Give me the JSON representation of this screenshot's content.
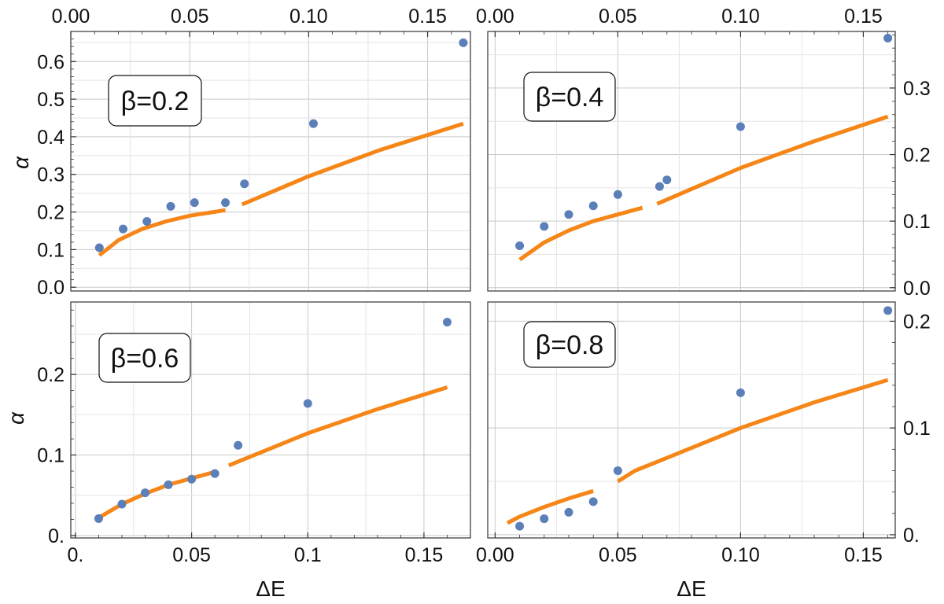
{
  "colors": {
    "points": "#5b7fb8",
    "curve": "#f58617",
    "grid": "#c9c9c9",
    "frame": "#333333"
  },
  "chart_data": [
    {
      "type": "scatter",
      "panel": "top-left",
      "label": "β=0.2",
      "xlabel": "",
      "ylabel": "α",
      "xlim": [
        0.0,
        0.168
      ],
      "ylim": [
        -0.01,
        0.68
      ],
      "x_ticks": [
        "0.00",
        "0.05",
        "0.10",
        "0.15"
      ],
      "x_tick_values": [
        0.0,
        0.05,
        0.1,
        0.15
      ],
      "x_axis_side": "top",
      "y_ticks": [
        "0.0",
        "0.1",
        "0.2",
        "0.3",
        "0.4",
        "0.5",
        "0.6"
      ],
      "y_tick_values": [
        0.0,
        0.1,
        0.2,
        0.3,
        0.4,
        0.5,
        0.6
      ],
      "y_axis_side": "left",
      "grid": true,
      "legend_position": "top-left",
      "series": [
        {
          "name": "data",
          "kind": "points",
          "x": [
            0.012,
            0.022,
            0.032,
            0.042,
            0.052,
            0.065,
            0.073,
            0.102,
            0.165
          ],
          "y": [
            0.105,
            0.155,
            0.175,
            0.215,
            0.225,
            0.225,
            0.275,
            0.435,
            0.65
          ]
        },
        {
          "name": "fit-low",
          "kind": "line",
          "x": [
            0.012,
            0.02,
            0.03,
            0.04,
            0.05,
            0.06,
            0.065
          ],
          "y": [
            0.085,
            0.125,
            0.155,
            0.175,
            0.19,
            0.2,
            0.205
          ]
        },
        {
          "name": "fit-high",
          "kind": "line",
          "x": [
            0.072,
            0.1,
            0.13,
            0.165
          ],
          "y": [
            0.22,
            0.295,
            0.365,
            0.435
          ]
        }
      ]
    },
    {
      "type": "scatter",
      "panel": "top-right",
      "label": "β=0.4",
      "xlabel": "",
      "ylabel": "",
      "xlim": [
        -0.003,
        0.163
      ],
      "ylim": [
        -0.005,
        0.385
      ],
      "x_ticks": [
        "0.00",
        "0.05",
        "0.10",
        "0.15"
      ],
      "x_tick_values": [
        0.0,
        0.05,
        0.1,
        0.15
      ],
      "x_axis_side": "top",
      "y_ticks": [
        "0.0",
        "0.1",
        "0.2",
        "0.3"
      ],
      "y_tick_values": [
        0.0,
        0.1,
        0.2,
        0.3
      ],
      "y_axis_side": "right",
      "grid": true,
      "legend_position": "top-left",
      "series": [
        {
          "name": "data",
          "kind": "points",
          "x": [
            0.01,
            0.02,
            0.03,
            0.04,
            0.05,
            0.067,
            0.07,
            0.1,
            0.16
          ],
          "y": [
            0.063,
            0.092,
            0.11,
            0.123,
            0.14,
            0.152,
            0.162,
            0.242,
            0.375
          ]
        },
        {
          "name": "fit-low",
          "kind": "line",
          "x": [
            0.01,
            0.02,
            0.03,
            0.04,
            0.05,
            0.06
          ],
          "y": [
            0.042,
            0.068,
            0.086,
            0.1,
            0.11,
            0.12
          ]
        },
        {
          "name": "fit-high",
          "kind": "line",
          "x": [
            0.066,
            0.1,
            0.13,
            0.16
          ],
          "y": [
            0.126,
            0.18,
            0.22,
            0.257
          ]
        }
      ]
    },
    {
      "type": "scatter",
      "panel": "bottom-left",
      "label": "β=0.6",
      "xlabel": "ΔE",
      "ylabel": "α",
      "xlim": [
        -0.002,
        0.17
      ],
      "ylim": [
        -0.003,
        0.29
      ],
      "x_ticks": [
        "0.",
        "0.05",
        "0.1",
        "0.15"
      ],
      "x_tick_values": [
        0.0,
        0.05,
        0.1,
        0.15
      ],
      "x_axis_side": "bottom",
      "y_ticks": [
        "0.",
        "0.1",
        "0.2"
      ],
      "y_tick_values": [
        0.0,
        0.1,
        0.2
      ],
      "y_axis_side": "left",
      "grid": true,
      "legend_position": "top-left",
      "series": [
        {
          "name": "data",
          "kind": "points",
          "x": [
            0.01,
            0.02,
            0.03,
            0.04,
            0.05,
            0.06,
            0.07,
            0.1,
            0.16
          ],
          "y": [
            0.021,
            0.039,
            0.053,
            0.063,
            0.07,
            0.077,
            0.112,
            0.164,
            0.265
          ]
        },
        {
          "name": "fit-low",
          "kind": "line",
          "x": [
            0.01,
            0.02,
            0.03,
            0.04,
            0.05,
            0.06
          ],
          "y": [
            0.022,
            0.039,
            0.052,
            0.063,
            0.071,
            0.079
          ]
        },
        {
          "name": "fit-high",
          "kind": "line",
          "x": [
            0.066,
            0.1,
            0.13,
            0.16
          ],
          "y": [
            0.087,
            0.127,
            0.157,
            0.184
          ]
        }
      ]
    },
    {
      "type": "scatter",
      "panel": "bottom-right",
      "label": "β=0.8",
      "xlabel": "ΔE",
      "ylabel": "",
      "xlim": [
        -0.003,
        0.163
      ],
      "ylim": [
        -0.003,
        0.218
      ],
      "x_ticks": [
        "0.00",
        "0.05",
        "0.10",
        "0.15"
      ],
      "x_tick_values": [
        0.0,
        0.05,
        0.1,
        0.15
      ],
      "x_axis_side": "bottom",
      "y_ticks": [
        "0.",
        "0.1",
        "0.2"
      ],
      "y_tick_values": [
        0.0,
        0.1,
        0.2
      ],
      "y_axis_side": "right",
      "grid": true,
      "legend_position": "top-left",
      "series": [
        {
          "name": "data",
          "kind": "points",
          "x": [
            0.01,
            0.02,
            0.03,
            0.04,
            0.05,
            0.1,
            0.16
          ],
          "y": [
            0.008,
            0.015,
            0.021,
            0.031,
            0.06,
            0.133,
            0.21
          ]
        },
        {
          "name": "fit-low",
          "kind": "line",
          "x": [
            0.005,
            0.01,
            0.02,
            0.03,
            0.04
          ],
          "y": [
            0.011,
            0.017,
            0.026,
            0.034,
            0.041
          ]
        },
        {
          "name": "fit-high",
          "kind": "line",
          "x": [
            0.05,
            0.057,
            0.07,
            0.1,
            0.13,
            0.16
          ],
          "y": [
            0.05,
            0.06,
            0.072,
            0.1,
            0.124,
            0.145
          ]
        }
      ]
    }
  ]
}
